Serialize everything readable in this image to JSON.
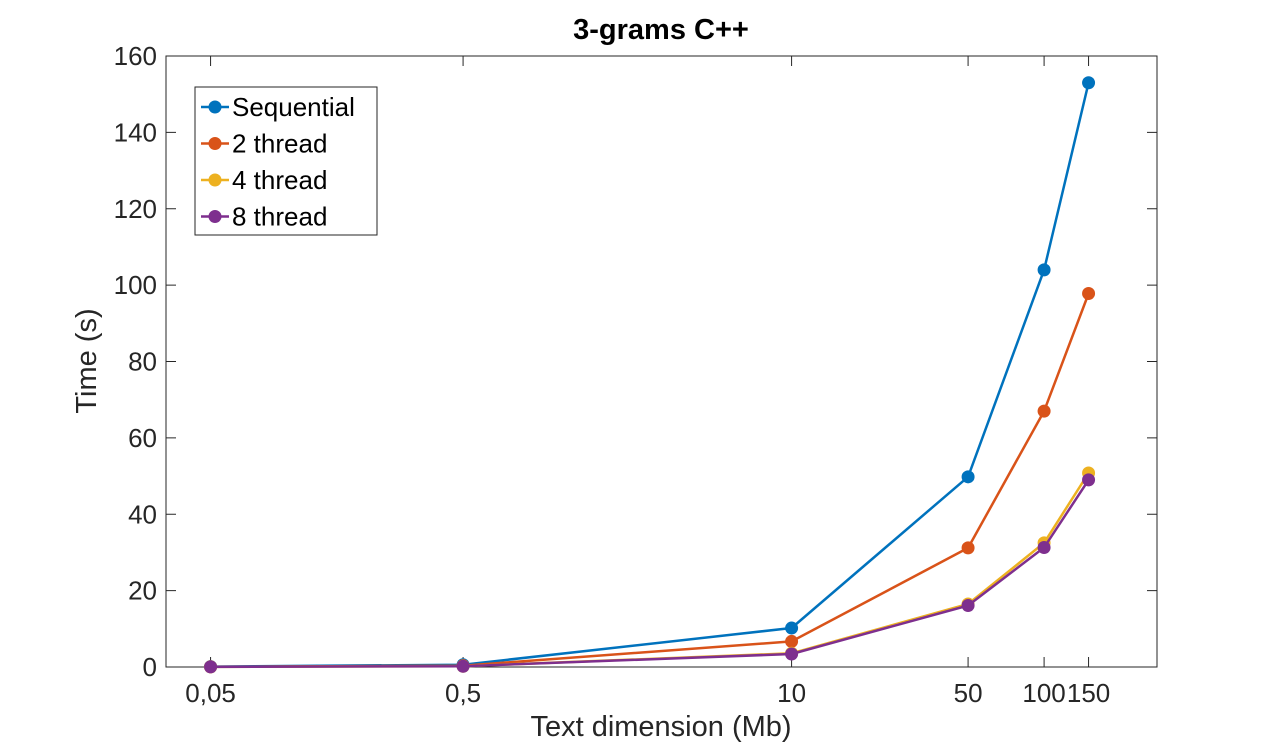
{
  "chart_data": {
    "type": "line",
    "title": "3-grams C++",
    "xlabel": "Text dimension (Mb)",
    "ylabel": "Time (s)",
    "x_tick_labels": [
      "0,05",
      "0,5",
      "10",
      "50",
      "100",
      "150"
    ],
    "x_scale": "log",
    "x": [
      0.05,
      0.5,
      10,
      50,
      100,
      150
    ],
    "xlim": [
      0.0333,
      280
    ],
    "ylim": [
      0,
      160
    ],
    "y_ticks": [
      0,
      20,
      40,
      60,
      80,
      100,
      120,
      140,
      160
    ],
    "legend_position": "top-left",
    "series": [
      {
        "name": "Sequential",
        "color": "#0072BD",
        "values": [
          0.1,
          0.6,
          10.2,
          49.8,
          104,
          153
        ]
      },
      {
        "name": "2 thread",
        "color": "#D95319",
        "values": [
          0.05,
          0.35,
          6.7,
          31.2,
          67,
          97.8
        ]
      },
      {
        "name": "4 thread",
        "color": "#EDB120",
        "values": [
          0.03,
          0.2,
          3.6,
          16.5,
          32.5,
          50.8
        ]
      },
      {
        "name": "8 thread",
        "color": "#7E2F8E",
        "values": [
          0.03,
          0.2,
          3.4,
          16.1,
          31.3,
          49
        ]
      }
    ]
  }
}
